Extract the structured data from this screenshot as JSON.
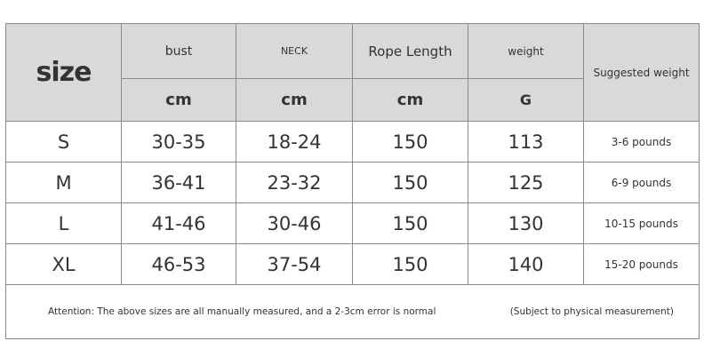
{
  "header": {
    "size": "size",
    "columns": [
      {
        "name": "bust",
        "unit": "cm"
      },
      {
        "name": "NECK",
        "unit": "cm"
      },
      {
        "name": "Rope Length",
        "unit": "cm"
      },
      {
        "name": "weight",
        "unit": "G"
      }
    ],
    "suggested": "Suggested weight"
  },
  "rows": [
    {
      "size": "S",
      "bust": "30-35",
      "neck": "18-24",
      "rope": "150",
      "weight": "113",
      "suggested": "3-6 pounds"
    },
    {
      "size": "M",
      "bust": "36-41",
      "neck": "23-32",
      "rope": "150",
      "weight": "125",
      "suggested": "6-9 pounds"
    },
    {
      "size": "L",
      "bust": "41-46",
      "neck": "30-46",
      "rope": "150",
      "weight": "130",
      "suggested": "10-15 pounds"
    },
    {
      "size": "XL",
      "bust": "46-53",
      "neck": "37-54",
      "rope": "150",
      "weight": "140",
      "suggested": "15-20 pounds"
    }
  ],
  "footer": {
    "note": "Attention: The above sizes are all manually measured, and a 2-3cm error is normal",
    "subject": "(Subject to physical measurement)"
  },
  "colors": {
    "header_bg": "#d9d9d9",
    "border": "#8a8a8a"
  }
}
